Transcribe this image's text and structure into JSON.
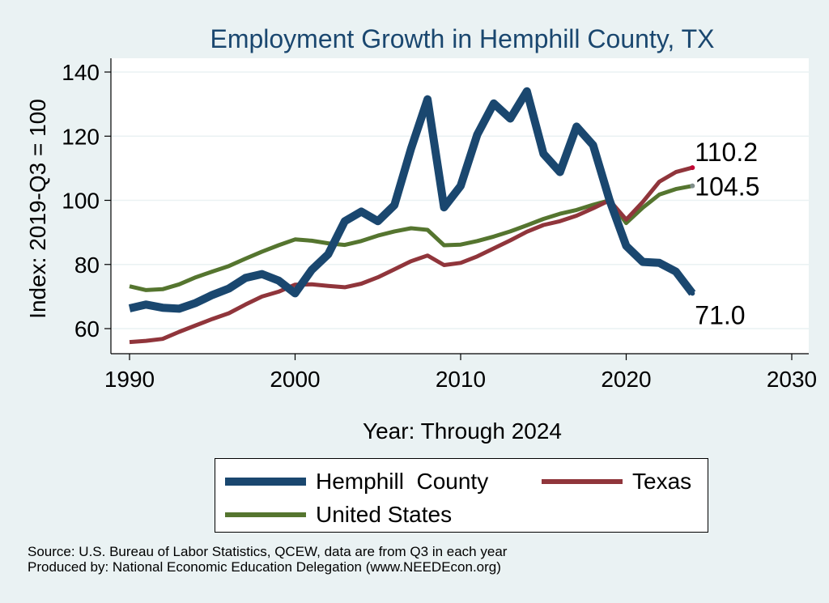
{
  "chart_data": {
    "type": "line",
    "title": "Employment Growth in Hemphill County, TX",
    "xlabel": "Year: Through 2024",
    "ylabel": "Index: 2019-Q3 = 100",
    "xlim": [
      1990,
      2030
    ],
    "ylim": [
      55,
      142
    ],
    "xticks": [
      1990,
      2000,
      2010,
      2020,
      2030
    ],
    "yticks": [
      60,
      80,
      100,
      120,
      140
    ],
    "grid": true,
    "legend_position": "bottom",
    "x": [
      1990,
      1991,
      1992,
      1993,
      1994,
      1995,
      1996,
      1997,
      1998,
      1999,
      2000,
      2001,
      2002,
      2003,
      2004,
      2005,
      2006,
      2007,
      2008,
      2009,
      2010,
      2011,
      2012,
      2013,
      2014,
      2015,
      2016,
      2017,
      2018,
      2019,
      2020,
      2021,
      2022,
      2023,
      2024
    ],
    "series": [
      {
        "name": "Hemphill  County",
        "color": "#1a476f",
        "values": [
          66.3,
          67.5,
          66.5,
          66.2,
          68.0,
          70.5,
          72.5,
          75.8,
          77.0,
          75.0,
          71.0,
          78.3,
          83.2,
          93.5,
          96.5,
          93.5,
          98.5,
          116.0,
          131.5,
          97.8,
          104.5,
          120.5,
          130.2,
          125.5,
          134.0,
          114.5,
          108.8,
          123.0,
          117.2,
          100.0,
          85.8,
          80.8,
          80.5,
          77.8,
          71.0
        ]
      },
      {
        "name": "Texas",
        "color": "#90353b",
        "values": [
          55.8,
          56.2,
          56.8,
          59.0,
          61.0,
          63.0,
          64.8,
          67.5,
          70.0,
          71.5,
          73.7,
          73.8,
          73.3,
          72.9,
          74.0,
          76.0,
          78.5,
          81.0,
          82.8,
          79.8,
          80.5,
          82.5,
          85.0,
          87.5,
          90.2,
          92.3,
          93.5,
          95.2,
          97.5,
          100.0,
          94.0,
          99.5,
          105.8,
          108.8,
          110.2
        ]
      },
      {
        "name": "United States",
        "color": "#55752f",
        "values": [
          73.2,
          72.0,
          72.3,
          73.8,
          76.0,
          77.8,
          79.5,
          81.8,
          84.0,
          86.0,
          87.8,
          87.4,
          86.6,
          86.1,
          87.3,
          89.0,
          90.3,
          91.3,
          90.8,
          86.0,
          86.2,
          87.3,
          88.7,
          90.3,
          92.2,
          94.2,
          95.8,
          97.0,
          98.6,
          100.0,
          92.9,
          97.7,
          101.8,
          103.5,
          104.5
        ]
      }
    ],
    "end_labels": [
      "71.0",
      "110.2",
      "104.5"
    ],
    "end_label_colors": {
      "hemphill": "#1a476f",
      "texas": "#c10534",
      "us": "#7f8e8a"
    }
  },
  "source": {
    "line1": "Source: U.S. Bureau of Labor Statistics, QCEW, data are from Q3 in each year",
    "line2": "Produced by: National Economic Education Delegation (www.NEEDEcon.org)"
  },
  "colors": {
    "background": "#eaf2f3",
    "plot_bg": "#ffffff",
    "grid": "#eaf2f3",
    "title": "#1a476f"
  }
}
